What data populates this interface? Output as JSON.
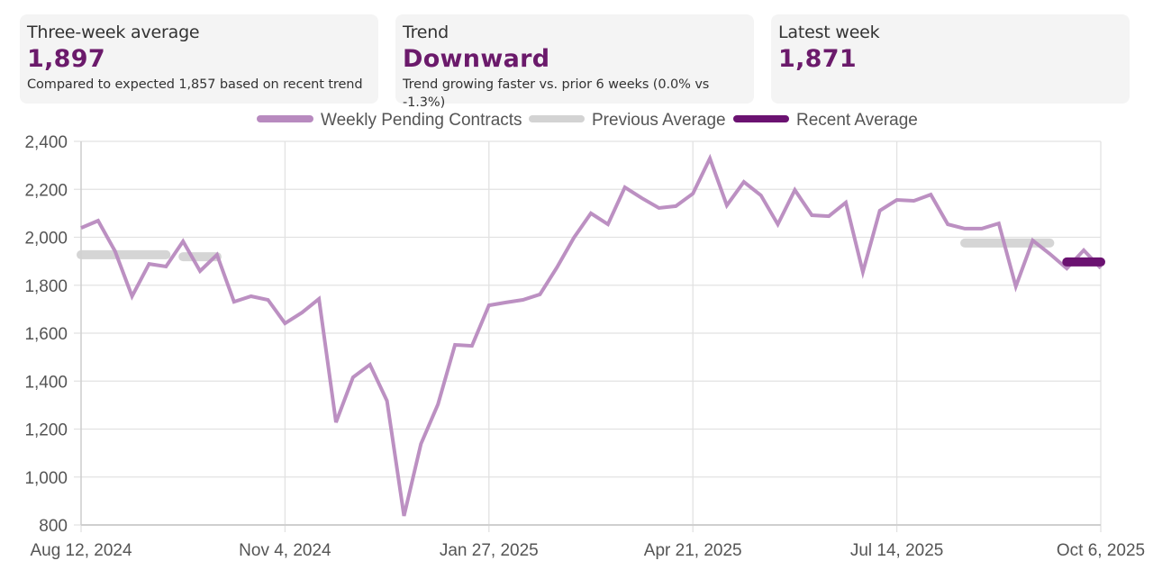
{
  "cards": [
    {
      "label": "Three-week average",
      "value": "1,897",
      "note": "Compared to expected 1,857 based on recent trend"
    },
    {
      "label": "Trend",
      "value": "Downward",
      "note": "Trend growing faster vs. prior 6 weeks (0.0% vs -1.3%)"
    },
    {
      "label": "Latest week",
      "value": "1,871",
      "note": ""
    }
  ],
  "colors": {
    "accent": "#6b1a6b",
    "weekly": "#b88abf",
    "previous": "#d3d3d3",
    "recent": "#6b1271",
    "grid": "#e2e2e2",
    "card_bg": "#f4f4f4"
  },
  "chart_data": {
    "type": "line",
    "title": "",
    "xlabel": "",
    "ylabel": "",
    "ylim": [
      800,
      2400
    ],
    "yticks": [
      800,
      1000,
      1200,
      1400,
      1600,
      1800,
      2000,
      2200,
      2400
    ],
    "ytick_labels": [
      "800",
      "1,000",
      "1,200",
      "1,400",
      "1,600",
      "1,800",
      "2,000",
      "2,200",
      "2,400"
    ],
    "x_start": "2024-08-12",
    "x_weeks": 60,
    "xticks": [
      {
        "week": 0,
        "label": "Aug 12, 2024"
      },
      {
        "week": 12,
        "label": "Nov 4, 2024"
      },
      {
        "week": 24,
        "label": "Jan 27, 2025"
      },
      {
        "week": 36,
        "label": "Apr 21, 2025"
      },
      {
        "week": 48,
        "label": "Jul 14, 2025"
      },
      {
        "week": 60,
        "label": "Oct 6, 2025"
      }
    ],
    "grid": true,
    "legend_position": "top-center",
    "legend": [
      "Weekly Pending Contracts",
      "Previous Average",
      "Recent Average"
    ],
    "series": [
      {
        "name": "Weekly Pending Contracts",
        "values": [
          2039,
          2069,
          1942,
          1754,
          1889,
          1878,
          1983,
          1859,
          1927,
          1731,
          1754,
          1739,
          1641,
          1686,
          1743,
          1228,
          1416,
          1469,
          1318,
          838,
          1138,
          1303,
          1551,
          1547,
          1716,
          1728,
          1739,
          1762,
          1874,
          1998,
          2100,
          2054,
          2208,
          2163,
          2122,
          2130,
          2182,
          2329,
          2133,
          2231,
          2175,
          2054,
          2197,
          2092,
          2088,
          2145,
          1855,
          2111,
          2156,
          2152,
          2178,
          2054,
          2036,
          2036,
          2058,
          1795,
          1987,
          1931,
          1870,
          1946,
          1871
        ]
      },
      {
        "name": "Previous Average",
        "segments": [
          {
            "start_week": 0,
            "end_week": 5,
            "value": 1927
          },
          {
            "start_week": 6,
            "end_week": 8,
            "value": 1919
          },
          {
            "start_week": 52,
            "end_week": 57,
            "value": 1976
          }
        ]
      },
      {
        "name": "Recent Average",
        "segments": [
          {
            "start_week": 58,
            "end_week": 60,
            "value": 1897
          }
        ]
      }
    ]
  }
}
